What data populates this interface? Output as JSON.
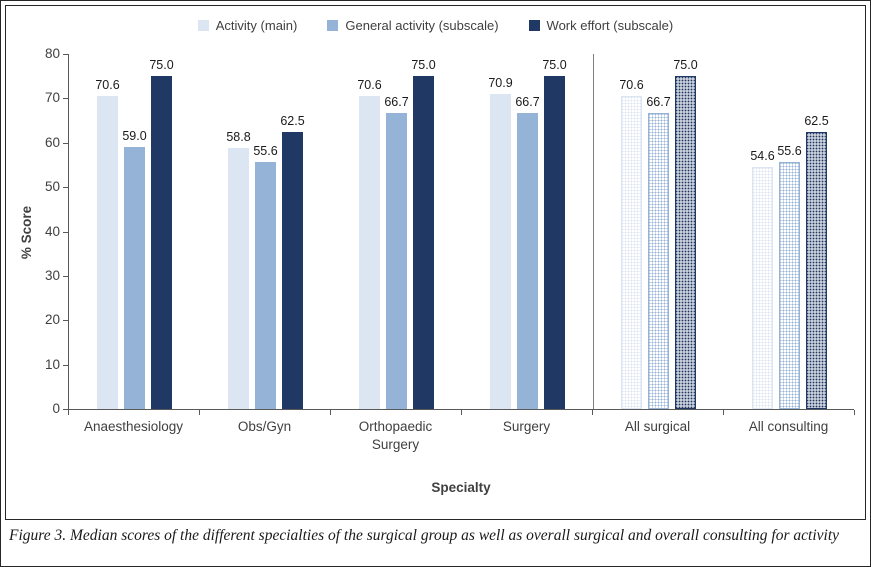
{
  "chart_data": {
    "type": "bar",
    "title": "",
    "xlabel": "Specialty",
    "ylabel": "% Score",
    "ylim": [
      0,
      80
    ],
    "ytick_step": 10,
    "grid": false,
    "legend_position": "top",
    "categories": [
      "Anaesthesiology",
      "Obs/Gyn",
      "Orthopaedic Surgery",
      "Surgery",
      "All surgical",
      "All consulting"
    ],
    "series": [
      {
        "name": "Activity (main)",
        "color": "#dce6f2",
        "values": [
          70.6,
          58.8,
          70.6,
          70.9,
          70.6,
          54.6
        ]
      },
      {
        "name": "General activity (subscale)",
        "color": "#95b3d7",
        "values": [
          59.0,
          55.6,
          66.7,
          66.7,
          66.7,
          55.6
        ]
      },
      {
        "name": "Work effort (subscale)",
        "color": "#1f3864",
        "values": [
          75.0,
          62.5,
          75.0,
          75.0,
          75.0,
          62.5
        ]
      }
    ],
    "patterned_categories": [
      "All surgical",
      "All consulting"
    ],
    "separator_after_category": "Surgery"
  },
  "caption": "Figure 3. Median scores of the different specialties of the surgical group as well as overall surgical and overall consulting for activity"
}
